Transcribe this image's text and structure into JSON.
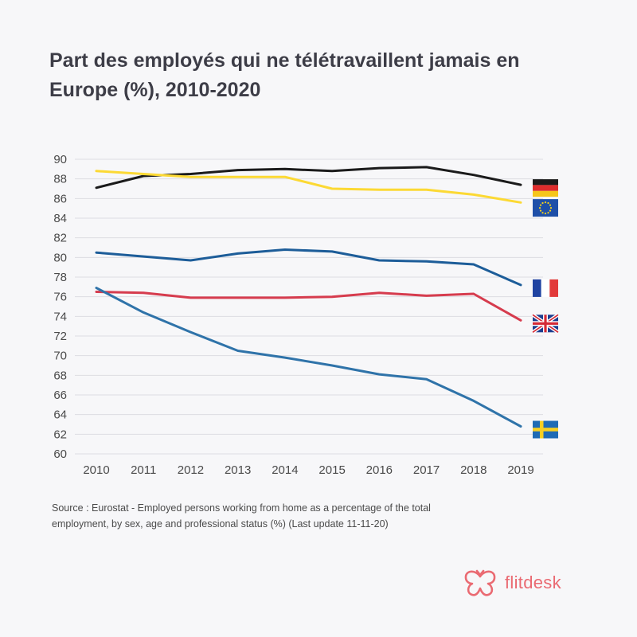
{
  "title": "Part des employés qui ne télétravaillent jamais en Europe (%), 2010-2020",
  "source": "Source : Eurostat - Employed persons working from home as a percentage of the total employment, by sex, age and professional status (%) (Last update 11-11-20)",
  "brand": {
    "name": "flitdesk",
    "color": "#ea6a72"
  },
  "chart_data": {
    "type": "line",
    "title": "Part des employés qui ne télétravaillent jamais en Europe (%), 2010-2020",
    "xlabel": "",
    "ylabel": "",
    "x": [
      "2010",
      "2011",
      "2012",
      "2013",
      "2014",
      "2015",
      "2016",
      "2017",
      "2018",
      "2019"
    ],
    "ylim": [
      60,
      90
    ],
    "yticks": [
      60,
      62,
      64,
      66,
      68,
      70,
      72,
      74,
      76,
      78,
      80,
      82,
      84,
      86,
      88,
      90
    ],
    "grid": true,
    "series": [
      {
        "name": "Allemagne",
        "flag": "germany-flag",
        "color": "#1b1b1b",
        "values": [
          87.1,
          88.3,
          88.5,
          88.9,
          89.0,
          88.8,
          89.1,
          89.2,
          88.4,
          87.4
        ]
      },
      {
        "name": "Union européenne",
        "flag": "eu-flag",
        "color": "#fcd934",
        "values": [
          88.8,
          88.5,
          88.2,
          88.2,
          88.2,
          87.0,
          86.9,
          86.9,
          86.4,
          85.6
        ]
      },
      {
        "name": "France",
        "flag": "france-flag",
        "color": "#1d5d99",
        "values": [
          80.5,
          80.1,
          79.7,
          80.4,
          80.8,
          80.6,
          79.7,
          79.6,
          79.3,
          77.2
        ]
      },
      {
        "name": "Royaume-Uni",
        "flag": "uk-flag",
        "color": "#d63c4e",
        "values": [
          76.5,
          76.4,
          75.9,
          75.9,
          75.9,
          76.0,
          76.4,
          76.1,
          76.3,
          73.6
        ]
      },
      {
        "name": "Suède",
        "flag": "sweden-flag",
        "color": "#2f73a9",
        "values": [
          76.9,
          74.4,
          72.4,
          70.5,
          69.8,
          69.0,
          68.1,
          67.6,
          65.4,
          62.8
        ]
      }
    ]
  }
}
